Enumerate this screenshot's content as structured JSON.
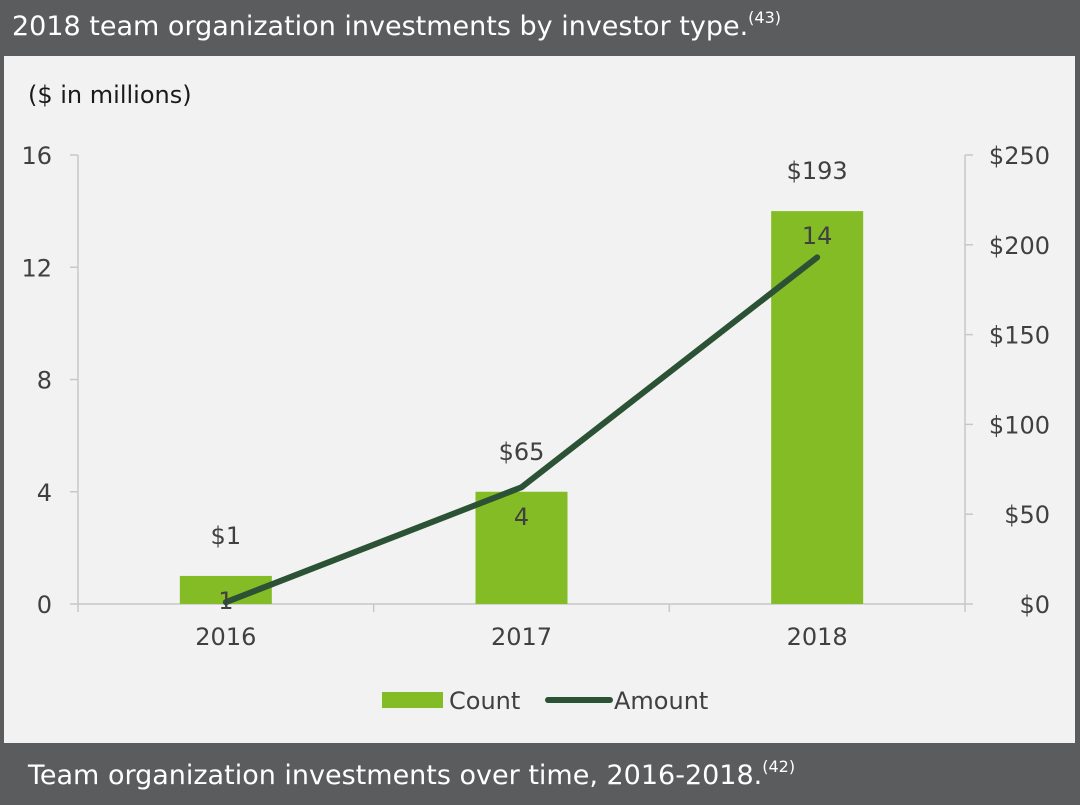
{
  "header": {
    "title": "2018 team organization investments by investor type.",
    "ref": "(43)"
  },
  "footer": {
    "title": "Team organization investments over time, 2016-2018.",
    "ref": "(42)"
  },
  "colors": {
    "bar": "#84bc26",
    "line": "#2b5234",
    "axis": "#c8c8c8",
    "text": "#404040"
  },
  "chart_data": {
    "type": "bar",
    "unit_note": "($ in millions)",
    "categories": [
      "2016",
      "2017",
      "2018"
    ],
    "series": [
      {
        "name": "Count",
        "type": "bar",
        "axis": "left",
        "values": [
          1,
          4,
          14
        ],
        "labels": [
          "1",
          "4",
          "14"
        ]
      },
      {
        "name": "Amount",
        "type": "line",
        "axis": "right",
        "values": [
          1,
          65,
          193
        ],
        "labels": [
          "$1",
          "$65",
          "$193"
        ]
      }
    ],
    "y_left": {
      "range": [
        0,
        16
      ],
      "ticks": [
        "0",
        "4",
        "8",
        "12",
        "16"
      ],
      "tick_values": [
        0,
        4,
        8,
        12,
        16
      ]
    },
    "y_right": {
      "range": [
        0,
        250
      ],
      "ticks": [
        "$0",
        "$50",
        "$100",
        "$150",
        "$200",
        "$250"
      ],
      "tick_values": [
        0,
        50,
        100,
        150,
        200,
        250
      ]
    },
    "grid": false,
    "legend": {
      "placement": "bottom",
      "items": [
        "Count",
        "Amount"
      ]
    }
  }
}
